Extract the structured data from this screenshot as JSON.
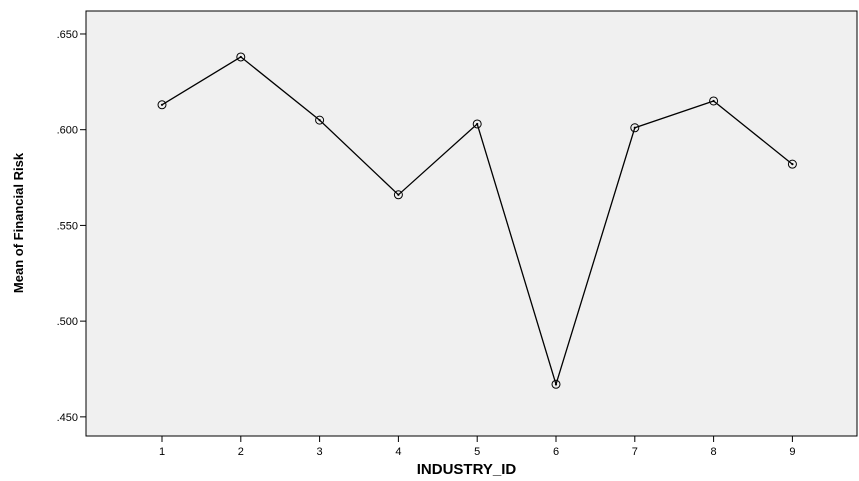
{
  "chart_data": {
    "type": "line",
    "xlabel": "INDUSTRY_ID",
    "ylabel": "Mean of Financial Risk",
    "categories": [
      "1",
      "2",
      "3",
      "4",
      "5",
      "6",
      "7",
      "8",
      "9"
    ],
    "series": [
      {
        "values": [
          0.613,
          0.638,
          0.605,
          0.566,
          0.603,
          0.467,
          0.601,
          0.615,
          0.582
        ]
      }
    ],
    "yticks": [
      ".450",
      ".500",
      ".550",
      ".600",
      ".650"
    ],
    "ylim": [
      0.44,
      0.662
    ],
    "grid": false,
    "colors": {
      "plot_background": "#f0f0f0",
      "line": "#000000",
      "marker_stroke": "#000000"
    }
  }
}
